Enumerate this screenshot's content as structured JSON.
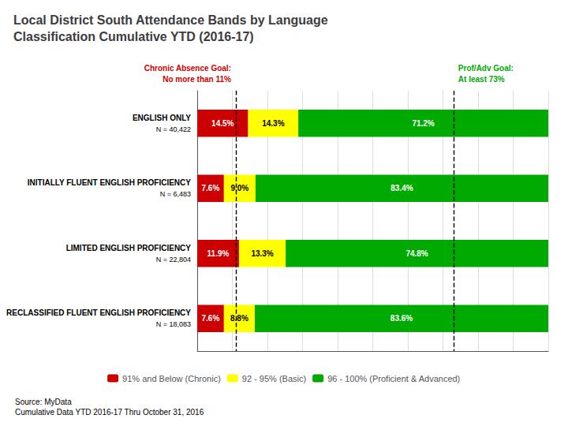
{
  "chart_data": {
    "type": "bar",
    "orientation": "horizontal",
    "stacked": true,
    "title": "Local District South Attendance Bands by Language\nClassification Cumulative YTD (2016-17)",
    "categories": [
      "ENGLISH ONLY",
      "INITIALLY FLUENT ENGLISH PROFICIENCY",
      "LIMITED ENGLISH PROFICIENCY",
      "RECLASSIFIED FLUENT ENGLISH PROFICIENCY"
    ],
    "subcategories": [
      "N = 40,422",
      "N = 6,483",
      "N = 22,804",
      "N = 18,083"
    ],
    "series": [
      {
        "name": "91% and Below (Chronic)",
        "color": "#CC0000",
        "values": [
          14.5,
          7.6,
          11.9,
          7.6
        ],
        "value_labels": [
          "14.5%",
          "7.6%",
          "11.9%",
          "7.6%"
        ]
      },
      {
        "name": "92 - 95% (Basic)",
        "color": "#FFFF00",
        "values": [
          14.3,
          9.0,
          13.3,
          8.8
        ],
        "value_labels": [
          "14.3%",
          "9.0%",
          "13.3%",
          "8.8%"
        ]
      },
      {
        "name": "96 - 100% (Proficient & Advanced)",
        "color": "#00AA00",
        "values": [
          71.2,
          83.4,
          74.8,
          83.6
        ],
        "value_labels": [
          "71.2%",
          "83.4%",
          "74.8%",
          "83.6%"
        ]
      }
    ],
    "xlim": [
      0,
      100
    ],
    "xticks": [
      0,
      10,
      20,
      30,
      40,
      50,
      60,
      70,
      80,
      90,
      100
    ],
    "grid": true,
    "tick_labels": "y",
    "data_labels": true,
    "legend": "bottom",
    "annotations": [
      {
        "x": 11.0,
        "text": "Chronic Absence Goal:\nNo more than 11%",
        "color": "#CC0000",
        "line_style": "dashed"
      },
      {
        "x": 73.0,
        "text": "Prof/Adv Goal:\nAt least 73%",
        "color": "#00AA00",
        "line_style": "dashed"
      }
    ],
    "source": "Source: MyData\nCumulative Data YTD 2016-17 Thru October 31, 2016"
  }
}
